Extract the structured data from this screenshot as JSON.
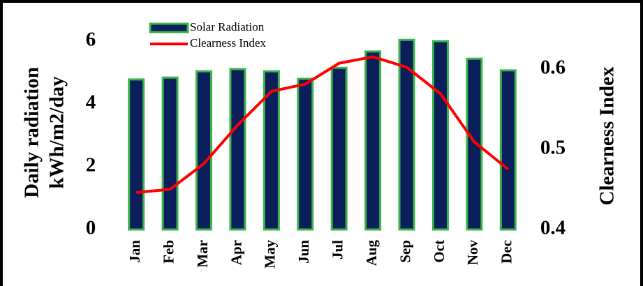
{
  "chart_data": {
    "type": "bar",
    "categories": [
      "Jan",
      "Feb",
      "Mar",
      "Apr",
      "May",
      "Jun",
      "Jul",
      "Aug",
      "Sep",
      "Oct",
      "Nov",
      "Dec"
    ],
    "series": [
      {
        "name": "Solar Radiation",
        "type": "bar",
        "color": "#0a1f5c",
        "edge_color": "#3cb44b",
        "values": [
          4.78,
          4.84,
          5.04,
          5.11,
          5.04,
          4.8,
          5.15,
          5.67,
          6.04,
          6.0,
          5.44,
          5.07
        ]
      },
      {
        "name": "Clearness Index",
        "type": "line",
        "axis": "y2",
        "color": "#ff0000",
        "values": [
          0.446,
          0.45,
          0.482,
          0.53,
          0.572,
          0.581,
          0.607,
          0.615,
          0.602,
          0.569,
          0.509,
          0.475
        ]
      }
    ],
    "ylabel": [
      "Daily radiation",
      "kWh/m2/day"
    ],
    "y2label": "Clearness Index",
    "ylim": [
      0,
      6.5
    ],
    "yticks": [
      0,
      2,
      4,
      6
    ],
    "y2lim": [
      0.4,
      0.654
    ],
    "y2ticks": [
      {
        "value": 0.4,
        "label": "0.4"
      },
      {
        "value": 0.5,
        "label": "0.5"
      },
      {
        "value": 0.6,
        "label": "0.6"
      }
    ],
    "grid": false,
    "legend": "top"
  }
}
